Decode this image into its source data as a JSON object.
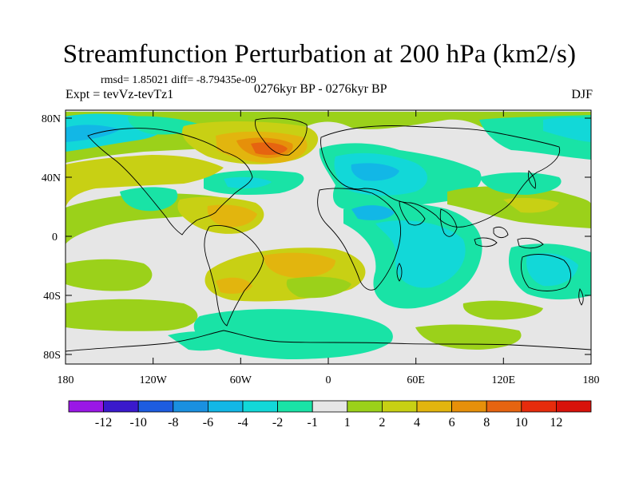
{
  "title": "Streamfunction Perturbation at 200 hPa (km2/s)",
  "stats": "rmsd= 1.85021 diff= -8.79435e-09",
  "experiment": "Expt = tevVz-tevTz1",
  "period": "0276kyr BP - 0276kyr BP",
  "season": "DJF",
  "lat_ticks": [
    "80N",
    "40N",
    "0",
    "40S",
    "80S"
  ],
  "lon_ticks": [
    "180",
    "120W",
    "60W",
    "0",
    "60E",
    "120E",
    "180"
  ],
  "colorbar": {
    "labels": [
      "-12",
      "-10",
      "-8",
      "-6",
      "-4",
      "-2",
      "-1",
      "1",
      "2",
      "4",
      "6",
      "8",
      "10",
      "12"
    ],
    "colors": [
      "#9a17e6",
      "#3a19cc",
      "#1d5ce0",
      "#1a90e0",
      "#12b7e6",
      "#12d8d8",
      "#19e3a6",
      "#e6e6e6",
      "#9bd11a",
      "#c8d014",
      "#e2b50e",
      "#e6900a",
      "#e66410",
      "#e62c0c",
      "#d8120a"
    ]
  },
  "colors": {
    "land_outline": "#000000",
    "background": "#e6e6e6"
  }
}
